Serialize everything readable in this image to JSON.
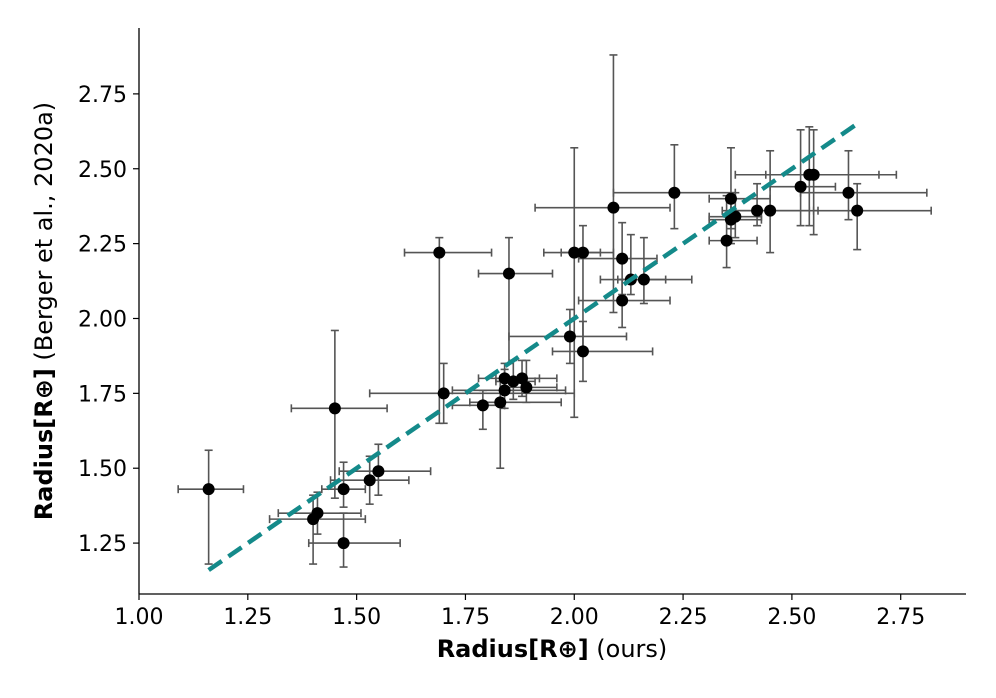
{
  "chart_data": {
    "type": "scatter",
    "xlabel_bold": "Radius[R⊕]",
    "xlabel_rest": " (ours)",
    "ylabel_bold": "Radius[R⊕]",
    "ylabel_rest": " (Berger et al., 2020a)",
    "xlim": [
      1.0,
      2.9
    ],
    "ylim": [
      1.08,
      2.97
    ],
    "xticks": [
      "1.00",
      "1.25",
      "1.50",
      "1.75",
      "2.00",
      "2.25",
      "2.50",
      "2.75"
    ],
    "yticks": [
      "1.25",
      "1.50",
      "1.75",
      "2.00",
      "2.25",
      "2.50",
      "2.75"
    ],
    "point_color": "#000000",
    "errorbar_color": "#555555",
    "fit_line": {
      "color": "#148a8a",
      "x": [
        1.16,
        2.65
      ],
      "y": [
        1.16,
        2.65
      ]
    },
    "points": [
      {
        "x": 1.16,
        "y": 1.43,
        "xerr": [
          0.07,
          0.08
        ],
        "yerr": [
          0.25,
          0.13
        ]
      },
      {
        "x": 1.4,
        "y": 1.33,
        "xerr": [
          0.1,
          0.12
        ],
        "yerr": [
          0.15,
          0.08
        ]
      },
      {
        "x": 1.41,
        "y": 1.35,
        "xerr": [
          0.09,
          0.1
        ],
        "yerr": [
          0.07,
          0.07
        ]
      },
      {
        "x": 1.45,
        "y": 1.7,
        "xerr": [
          0.1,
          0.12
        ],
        "yerr": [
          0.3,
          0.26
        ]
      },
      {
        "x": 1.47,
        "y": 1.25,
        "xerr": [
          0.08,
          0.13
        ],
        "yerr": [
          0.08,
          0.1
        ]
      },
      {
        "x": 1.47,
        "y": 1.43,
        "xerr": [
          0.05,
          0.05
        ],
        "yerr": [
          0.06,
          0.09
        ]
      },
      {
        "x": 1.53,
        "y": 1.46,
        "xerr": [
          0.09,
          0.09
        ],
        "yerr": [
          0.08,
          0.08
        ]
      },
      {
        "x": 1.55,
        "y": 1.49,
        "xerr": [
          0.09,
          0.12
        ],
        "yerr": [
          0.08,
          0.09
        ]
      },
      {
        "x": 1.69,
        "y": 2.22,
        "xerr": [
          0.08,
          0.12
        ],
        "yerr": [
          0.57,
          0.05
        ]
      },
      {
        "x": 1.7,
        "y": 1.75,
        "xerr": [
          0.17,
          0.3
        ],
        "yerr": [
          0.1,
          0.1
        ]
      },
      {
        "x": 1.79,
        "y": 1.71,
        "xerr": [
          0.07,
          0.05
        ],
        "yerr": [
          0.08,
          0.05
        ]
      },
      {
        "x": 1.83,
        "y": 1.72,
        "xerr": [
          0.07,
          0.14
        ],
        "yerr": [
          0.22,
          0.07
        ]
      },
      {
        "x": 1.84,
        "y": 1.76,
        "xerr": [
          0.12,
          0.14
        ],
        "yerr": [
          0.06,
          0.07
        ]
      },
      {
        "x": 1.84,
        "y": 1.8,
        "xerr": [
          0.06,
          0.08
        ],
        "yerr": [
          0.05,
          0.05
        ]
      },
      {
        "x": 1.85,
        "y": 2.15,
        "xerr": [
          0.07,
          0.1
        ],
        "yerr": [
          0.3,
          0.12
        ]
      },
      {
        "x": 1.86,
        "y": 1.79,
        "xerr": [
          0.04,
          0.05
        ],
        "yerr": [
          0.06,
          0.07
        ]
      },
      {
        "x": 1.88,
        "y": 1.8,
        "xerr": [
          0.06,
          0.08
        ],
        "yerr": [
          0.06,
          0.06
        ]
      },
      {
        "x": 1.89,
        "y": 1.77,
        "xerr": [
          0.06,
          0.07
        ],
        "yerr": [
          0.05,
          0.09
        ]
      },
      {
        "x": 1.99,
        "y": 1.94,
        "xerr": [
          0.14,
          0.13
        ],
        "yerr": [
          0.09,
          0.09
        ]
      },
      {
        "x": 2.0,
        "y": 2.22,
        "xerr": [
          0.07,
          0.06
        ],
        "yerr": [
          0.55,
          0.35
        ]
      },
      {
        "x": 2.02,
        "y": 1.89,
        "xerr": [
          0.07,
          0.16
        ],
        "yerr": [
          0.1,
          0.1
        ]
      },
      {
        "x": 2.02,
        "y": 2.22,
        "xerr": [
          0.05,
          0.07
        ],
        "yerr": [
          0.34,
          0.09
        ]
      },
      {
        "x": 2.09,
        "y": 2.37,
        "xerr": [
          0.18,
          0.13
        ],
        "yerr": [
          0.35,
          0.51
        ]
      },
      {
        "x": 2.11,
        "y": 2.06,
        "xerr": [
          0.1,
          0.11
        ],
        "yerr": [
          0.09,
          0.07
        ]
      },
      {
        "x": 2.11,
        "y": 2.2,
        "xerr": [
          0.1,
          0.08
        ],
        "yerr": [
          0.12,
          0.12
        ]
      },
      {
        "x": 2.13,
        "y": 2.13,
        "xerr": [
          0.07,
          0.08
        ],
        "yerr": [
          0.05,
          0.15
        ]
      },
      {
        "x": 2.16,
        "y": 2.13,
        "xerr": [
          0.06,
          0.11
        ],
        "yerr": [
          0.08,
          0.14
        ]
      },
      {
        "x": 2.23,
        "y": 2.42,
        "xerr": [
          0.14,
          0.14
        ],
        "yerr": [
          0.12,
          0.16
        ]
      },
      {
        "x": 2.35,
        "y": 2.26,
        "xerr": [
          0.04,
          0.07
        ],
        "yerr": [
          0.09,
          0.15
        ]
      },
      {
        "x": 2.36,
        "y": 2.33,
        "xerr": [
          0.05,
          0.07
        ],
        "yerr": [
          0.08,
          0.08
        ]
      },
      {
        "x": 2.36,
        "y": 2.4,
        "xerr": [
          0.05,
          0.09
        ],
        "yerr": [
          0.1,
          0.17
        ]
      },
      {
        "x": 2.37,
        "y": 2.34,
        "xerr": [
          0.06,
          0.06
        ],
        "yerr": [
          0.07,
          0.08
        ]
      },
      {
        "x": 2.42,
        "y": 2.36,
        "xerr": [
          0.08,
          0.12
        ],
        "yerr": [
          0.05,
          0.09
        ]
      },
      {
        "x": 2.45,
        "y": 2.36,
        "xerr": [
          0.09,
          0.11
        ],
        "yerr": [
          0.14,
          0.2
        ]
      },
      {
        "x": 2.52,
        "y": 2.44,
        "xerr": [
          0.07,
          0.08
        ],
        "yerr": [
          0.13,
          0.19
        ]
      },
      {
        "x": 2.54,
        "y": 2.48,
        "xerr": [
          0.1,
          0.16
        ],
        "yerr": [
          0.17,
          0.16
        ]
      },
      {
        "x": 2.55,
        "y": 2.48,
        "xerr": [
          0.18,
          0.19
        ],
        "yerr": [
          0.2,
          0.15
        ]
      },
      {
        "x": 2.63,
        "y": 2.42,
        "xerr": [
          0.11,
          0.18
        ],
        "yerr": [
          0.09,
          0.14
        ]
      },
      {
        "x": 2.65,
        "y": 2.36,
        "xerr": [
          0.1,
          0.17
        ],
        "yerr": [
          0.13,
          0.09
        ]
      }
    ]
  }
}
